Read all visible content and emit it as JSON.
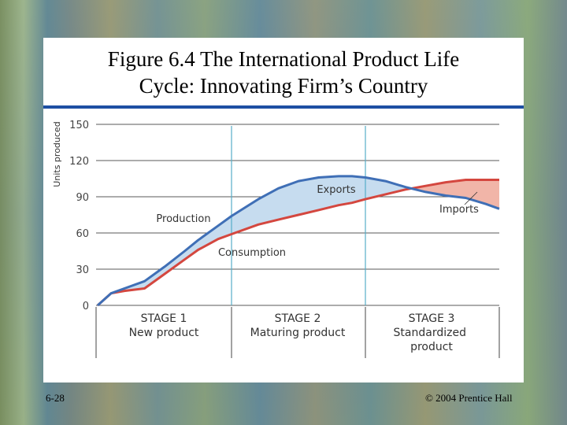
{
  "slide": {
    "title_line1": "Figure 6.4 The International Product Life",
    "title_line2": "Cycle: Innovating Firm’s Country",
    "footer_left": "6-28",
    "footer_right": "© 2004 Prentice Hall"
  },
  "colors": {
    "production": "#3f6fb6",
    "consumption": "#d4473f",
    "exports_fill": "#c6dcef",
    "imports_fill": "#f1b5a8",
    "stage_divider": "#56aec9",
    "title_rule": "#1d4fa3"
  },
  "chart_data": {
    "type": "line",
    "title": "",
    "ylabel": "Units produced",
    "xlabel": "",
    "ylim": [
      0,
      150
    ],
    "yticks": [
      "0",
      "30",
      "60",
      "90",
      "120",
      "150"
    ],
    "grid": true,
    "x": [
      0,
      0.1,
      0.2,
      0.35,
      0.5,
      0.65,
      0.75,
      0.9,
      1.0,
      1.2,
      1.35,
      1.5,
      1.65,
      1.8,
      1.9,
      2.0,
      2.15,
      2.3,
      2.45,
      2.6,
      2.75,
      2.9,
      3.0
    ],
    "series": [
      {
        "name": "Production",
        "values": [
          0,
          10,
          14,
          20,
          32,
          45,
          54,
          66,
          74,
          88,
          97,
          103,
          106,
          107,
          107,
          106,
          103,
          98,
          94,
          91,
          89,
          84,
          80
        ]
      },
      {
        "name": "Consumption",
        "values": [
          0,
          10,
          12,
          14,
          26,
          38,
          46,
          55,
          59,
          67,
          71,
          75,
          79,
          83,
          85,
          88,
          92,
          96,
          99,
          102,
          104,
          104,
          104
        ]
      }
    ],
    "annotations": [
      "Exports",
      "Imports"
    ],
    "stages": [
      {
        "label": "STAGE 1",
        "name": "New product"
      },
      {
        "label": "STAGE 2",
        "name": "Maturing product"
      },
      {
        "label": "STAGE 3",
        "name": "Standardized product"
      }
    ]
  }
}
